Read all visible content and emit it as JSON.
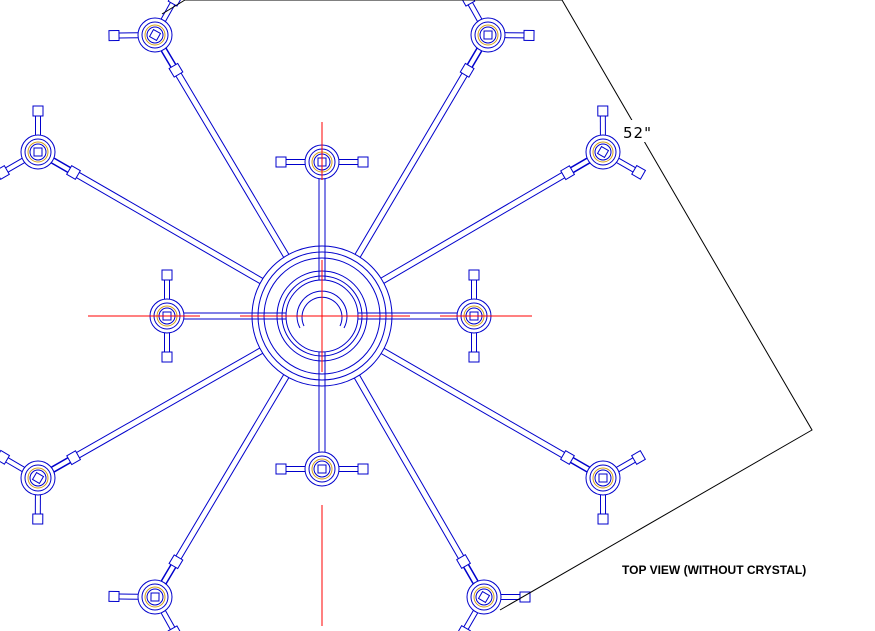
{
  "drawing": {
    "dimension_label": "52\"",
    "view_title": "TOP VIEW (WITHOUT CRYSTAL)"
  },
  "colors": {
    "structure": "#0000cc",
    "centerline": "#ff0000",
    "candle_cup": "#d4a017",
    "dimension": "#000000",
    "title": "#000000"
  },
  "arms": {
    "outer_count": 8,
    "inner_count": 4
  }
}
